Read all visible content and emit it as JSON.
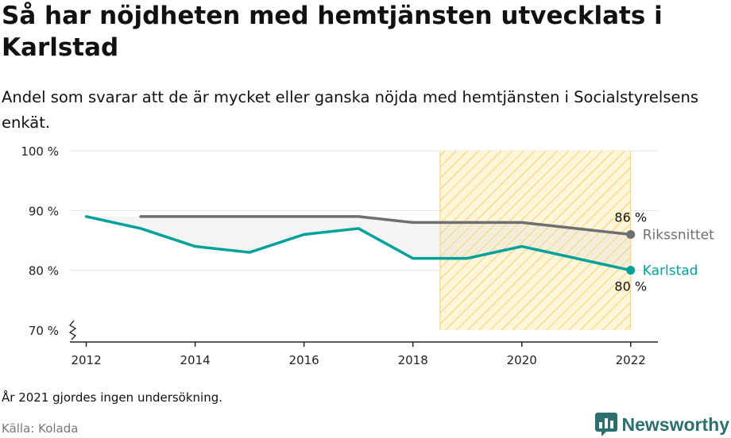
{
  "page": {
    "title": "Så har nöjdheten med hemtjänsten utvecklats i Karlstad",
    "subtitle": "Andel som svarar att de är mycket eller ganska nöjda med hemtjänsten i Socialstyrelsens enkät.",
    "note": "År 2021 gjordes ingen undersökning.",
    "source": "Källa: Kolada",
    "brand": "Newsworthy"
  },
  "chart_data": {
    "type": "line",
    "title": "Så har nöjdheten med hemtjänsten utvecklats i Karlstad",
    "subtitle": "Andel som svarar att de är mycket eller ganska nöjda med hemtjänsten i Socialstyrelsens enkät.",
    "xlabel": "",
    "ylabel": "",
    "xlim": [
      2011.7,
      2022.5
    ],
    "ylim": [
      70,
      100
    ],
    "x_ticks": [
      2012,
      2014,
      2016,
      2018,
      2020,
      2022
    ],
    "y_ticks": [
      {
        "value": 70,
        "label": "70 %"
      },
      {
        "value": 80,
        "label": "80 %"
      },
      {
        "value": 90,
        "label": "90 %"
      },
      {
        "value": 100,
        "label": "100 %"
      }
    ],
    "grid": true,
    "legend": "inline labels at line ends",
    "highlight_range": [
      2018.5,
      2022
    ],
    "series": [
      {
        "name": "Rikssnittet",
        "color": "#6e6e73",
        "x": [
          2013,
          2014,
          2015,
          2016,
          2017,
          2018,
          2019,
          2020,
          2022
        ],
        "values": [
          89,
          89,
          89,
          89,
          89,
          88,
          88,
          88,
          86
        ],
        "end_label": "86 %"
      },
      {
        "name": "Karlstad",
        "color": "#00a19a",
        "x": [
          2012,
          2013,
          2014,
          2015,
          2016,
          2017,
          2018,
          2019,
          2020,
          2022
        ],
        "values": [
          89,
          87,
          84,
          83,
          86,
          87,
          82,
          82,
          84,
          80
        ],
        "end_label": "80 %"
      }
    ]
  }
}
